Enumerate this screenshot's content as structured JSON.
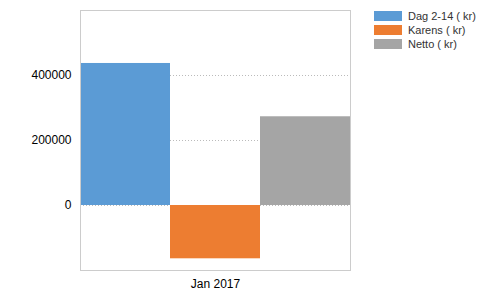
{
  "chart_data": {
    "type": "bar",
    "categories": [
      "Jan 2017"
    ],
    "series": [
      {
        "name": "Dag 2-14 ( kr)",
        "color": "#5b9bd5",
        "values": [
          437000
        ]
      },
      {
        "name": "Karens ( kr)",
        "color": "#ed7d31",
        "values": [
          -164000
        ]
      },
      {
        "name": "Netto ( kr)",
        "color": "#a5a5a5",
        "values": [
          273000
        ]
      }
    ],
    "ylim": [
      -200000,
      600000
    ],
    "yticks": [
      0,
      200000,
      400000
    ],
    "grid": true,
    "legend": "right"
  }
}
